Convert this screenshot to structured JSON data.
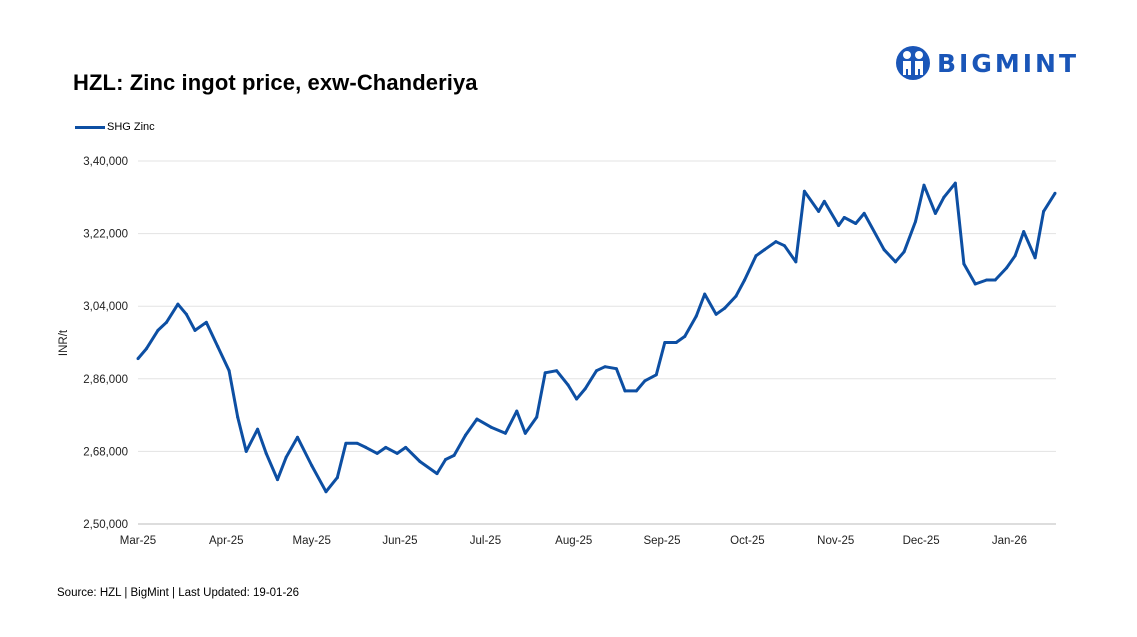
{
  "title": "HZL:  Zinc ingot price, exw-Chanderiya",
  "logo": {
    "text": "BIGMINT",
    "color": "#1a56b8"
  },
  "source": "Source: HZL | BigMint | Last Updated: 19-01-26",
  "chart_data": {
    "type": "line",
    "title": "HZL:  Zinc ingot price, exw-Chanderiya",
    "xlabel": "",
    "ylabel": "INR/t",
    "ylim": [
      250000,
      340000
    ],
    "xlim": [
      "2025-03-01",
      "2026-01-17"
    ],
    "grid": "horizontal",
    "legend_position": "top-left",
    "y_ticks": [
      250000,
      268000,
      286000,
      304000,
      322000,
      340000
    ],
    "y_tick_labels": [
      "2,50,000",
      "2,68,000",
      "2,86,000",
      "3,04,000",
      "3,22,000",
      "3,40,000"
    ],
    "x_ticks": [
      "2025-03-01",
      "2025-04-01",
      "2025-05-01",
      "2025-06-01",
      "2025-07-01",
      "2025-08-01",
      "2025-09-01",
      "2025-10-01",
      "2025-11-01",
      "2025-12-01",
      "2026-01-01"
    ],
    "x_tick_labels": [
      "Mar-25",
      "Apr-25",
      "May-25",
      "Jun-25",
      "Jul-25",
      "Aug-25",
      "Sep-25",
      "Oct-25",
      "Nov-25",
      "Dec-25",
      "Jan-26"
    ],
    "series": [
      {
        "name": "SHG Zinc",
        "color": "#0d4fa3",
        "points": [
          [
            "2025-03-01",
            291000
          ],
          [
            "2025-03-04",
            293500
          ],
          [
            "2025-03-08",
            298000
          ],
          [
            "2025-03-11",
            300000
          ],
          [
            "2025-03-15",
            304500
          ],
          [
            "2025-03-18",
            302000
          ],
          [
            "2025-03-21",
            298000
          ],
          [
            "2025-03-25",
            300000
          ],
          [
            "2025-03-29",
            294000
          ],
          [
            "2025-04-02",
            288000
          ],
          [
            "2025-04-05",
            276500
          ],
          [
            "2025-04-08",
            268000
          ],
          [
            "2025-04-12",
            273500
          ],
          [
            "2025-04-15",
            267500
          ],
          [
            "2025-04-19",
            261000
          ],
          [
            "2025-04-22",
            266500
          ],
          [
            "2025-04-26",
            271500
          ],
          [
            "2025-05-01",
            264500
          ],
          [
            "2025-05-06",
            258000
          ],
          [
            "2025-05-10",
            261500
          ],
          [
            "2025-05-13",
            270000
          ],
          [
            "2025-05-17",
            270000
          ],
          [
            "2025-05-20",
            269000
          ],
          [
            "2025-05-24",
            267500
          ],
          [
            "2025-05-27",
            269000
          ],
          [
            "2025-05-31",
            267500
          ],
          [
            "2025-06-03",
            269000
          ],
          [
            "2025-06-08",
            265500
          ],
          [
            "2025-06-14",
            262500
          ],
          [
            "2025-06-17",
            266000
          ],
          [
            "2025-06-20",
            267000
          ],
          [
            "2025-06-24",
            272000
          ],
          [
            "2025-06-28",
            276000
          ],
          [
            "2025-07-03",
            274000
          ],
          [
            "2025-07-08",
            272500
          ],
          [
            "2025-07-12",
            278000
          ],
          [
            "2025-07-15",
            272500
          ],
          [
            "2025-07-19",
            276500
          ],
          [
            "2025-07-22",
            287500
          ],
          [
            "2025-07-26",
            288000
          ],
          [
            "2025-07-30",
            284500
          ],
          [
            "2025-08-02",
            281000
          ],
          [
            "2025-08-05",
            283500
          ],
          [
            "2025-08-09",
            288000
          ],
          [
            "2025-08-12",
            289000
          ],
          [
            "2025-08-16",
            288500
          ],
          [
            "2025-08-19",
            283000
          ],
          [
            "2025-08-23",
            283000
          ],
          [
            "2025-08-26",
            285500
          ],
          [
            "2025-08-30",
            287000
          ],
          [
            "2025-09-02",
            295000
          ],
          [
            "2025-09-06",
            295000
          ],
          [
            "2025-09-09",
            296500
          ],
          [
            "2025-09-13",
            301500
          ],
          [
            "2025-09-16",
            307000
          ],
          [
            "2025-09-20",
            302000
          ],
          [
            "2025-09-23",
            303500
          ],
          [
            "2025-09-27",
            306500
          ],
          [
            "2025-09-30",
            310500
          ],
          [
            "2025-10-04",
            316500
          ],
          [
            "2025-10-07",
            318000
          ],
          [
            "2025-10-11",
            320000
          ],
          [
            "2025-10-14",
            319000
          ],
          [
            "2025-10-18",
            315000
          ],
          [
            "2025-10-21",
            332500
          ],
          [
            "2025-10-26",
            327500
          ],
          [
            "2025-10-28",
            330000
          ],
          [
            "2025-11-02",
            324000
          ],
          [
            "2025-11-04",
            326000
          ],
          [
            "2025-11-08",
            324500
          ],
          [
            "2025-11-11",
            327000
          ],
          [
            "2025-11-18",
            318000
          ],
          [
            "2025-11-22",
            315000
          ],
          [
            "2025-11-25",
            317500
          ],
          [
            "2025-11-29",
            325000
          ],
          [
            "2025-12-02",
            334000
          ],
          [
            "2025-12-06",
            327000
          ],
          [
            "2025-12-09",
            331000
          ],
          [
            "2025-12-13",
            334500
          ],
          [
            "2025-12-16",
            314500
          ],
          [
            "2025-12-20",
            309500
          ],
          [
            "2025-12-24",
            310500
          ],
          [
            "2025-12-27",
            310500
          ],
          [
            "2025-12-31",
            313500
          ],
          [
            "2026-01-03",
            316500
          ],
          [
            "2026-01-06",
            322500
          ],
          [
            "2026-01-10",
            316000
          ],
          [
            "2026-01-13",
            327500
          ],
          [
            "2026-01-17",
            332000
          ]
        ]
      }
    ]
  }
}
